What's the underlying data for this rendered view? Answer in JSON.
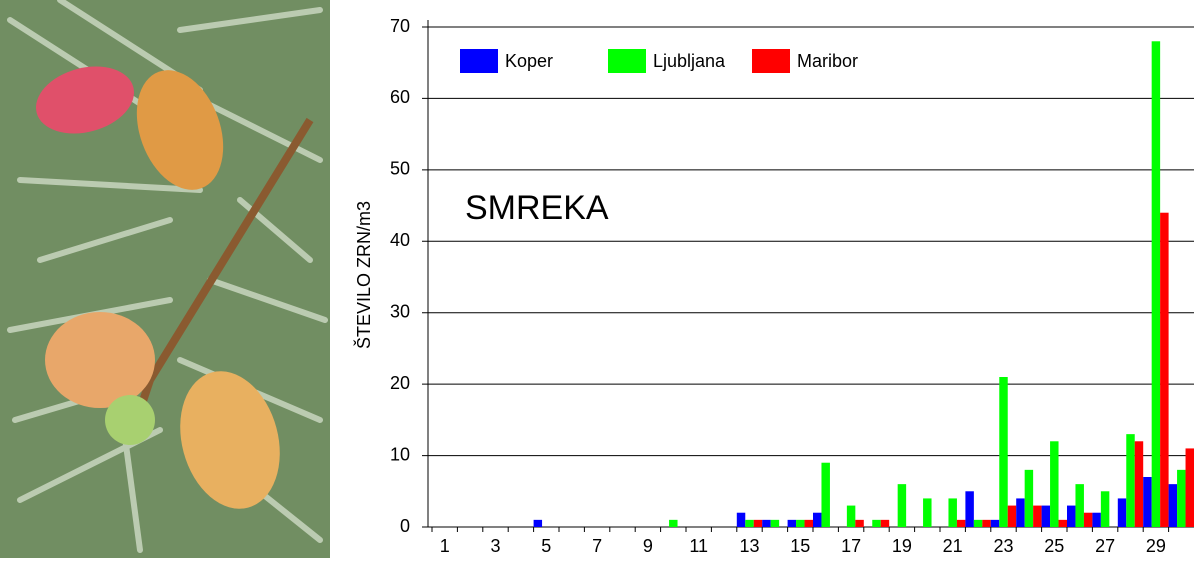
{
  "chart_data": {
    "type": "bar",
    "ylabel": "ŠTEVILO ZRN/m3",
    "annotation": "SMREKA",
    "categories": [
      "1",
      null,
      "3",
      null,
      "5",
      null,
      "7",
      null,
      "9",
      null,
      "11",
      null,
      "13",
      null,
      "15",
      null,
      "17",
      null,
      "19",
      null,
      "21",
      null,
      "23",
      null,
      "25",
      null,
      "27",
      null,
      "29",
      null
    ],
    "series": [
      {
        "name": "Koper",
        "color": "#0000ff",
        "values": [
          0,
          0,
          0,
          0,
          1,
          0,
          0,
          0,
          0,
          0,
          0,
          0,
          2,
          1,
          1,
          2,
          0,
          0,
          0,
          0,
          0,
          5,
          1,
          4,
          3,
          3,
          2,
          4,
          7,
          6
        ]
      },
      {
        "name": "Ljubljana",
        "color": "#00ff00",
        "values": [
          0,
          0,
          0,
          0,
          0,
          0,
          0,
          0,
          0,
          1,
          0,
          0,
          1,
          1,
          1,
          9,
          3,
          1,
          6,
          4,
          4,
          1,
          21,
          8,
          12,
          6,
          5,
          13,
          68,
          8
        ]
      },
      {
        "name": "Maribor",
        "color": "#ff0000",
        "values": [
          0,
          0,
          0,
          0,
          0,
          0,
          0,
          0,
          0,
          0,
          0,
          0,
          1,
          0,
          1,
          0,
          1,
          1,
          0,
          0,
          1,
          1,
          3,
          3,
          1,
          2,
          0,
          12,
          44,
          11
        ]
      }
    ],
    "ylim": [
      0,
      70
    ],
    "yticks": [
      0,
      10,
      20,
      30,
      40,
      50,
      60,
      70
    ],
    "grid": true
  }
}
